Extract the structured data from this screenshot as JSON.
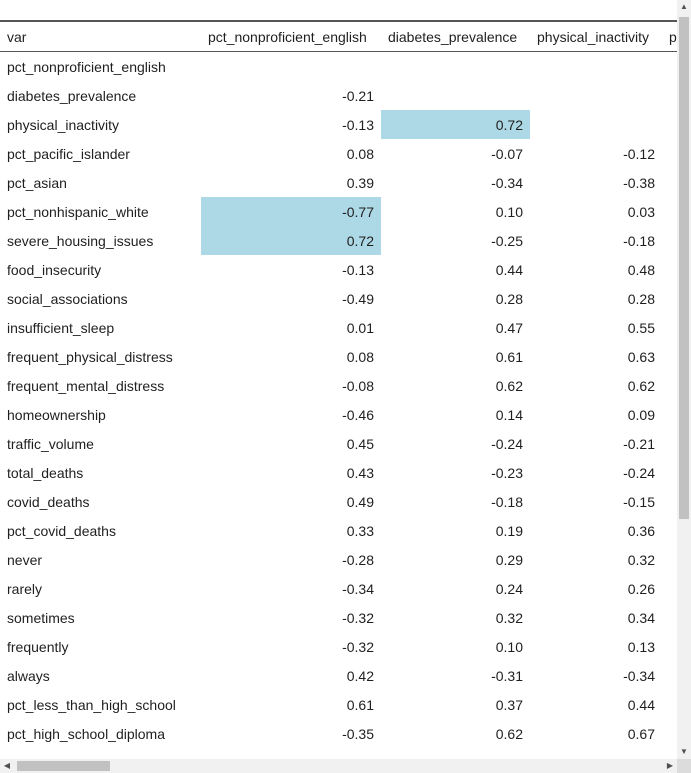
{
  "table": {
    "columns": [
      "var",
      "pct_nonproficient_english",
      "diabetes_prevalence",
      "physical_inactivity",
      "p"
    ],
    "rows": [
      {
        "var": "pct_nonproficient_english",
        "v1": "",
        "v2": "",
        "v3": "",
        "h1": false,
        "h2": false
      },
      {
        "var": "diabetes_prevalence",
        "v1": "-0.21",
        "v2": "",
        "v3": "",
        "h1": false,
        "h2": false
      },
      {
        "var": "physical_inactivity",
        "v1": "-0.13",
        "v2": "0.72",
        "v3": "",
        "h1": false,
        "h2": true
      },
      {
        "var": "pct_pacific_islander",
        "v1": "0.08",
        "v2": "-0.07",
        "v3": "-0.12",
        "h1": false,
        "h2": false
      },
      {
        "var": "pct_asian",
        "v1": "0.39",
        "v2": "-0.34",
        "v3": "-0.38",
        "h1": false,
        "h2": false
      },
      {
        "var": "pct_nonhispanic_white",
        "v1": "-0.77",
        "v2": "0.10",
        "v3": "0.03",
        "h1": true,
        "h2": false
      },
      {
        "var": "severe_housing_issues",
        "v1": "0.72",
        "v2": "-0.25",
        "v3": "-0.18",
        "h1": true,
        "h2": false
      },
      {
        "var": "food_insecurity",
        "v1": "-0.13",
        "v2": "0.44",
        "v3": "0.48",
        "h1": false,
        "h2": false
      },
      {
        "var": "social_associations",
        "v1": "-0.49",
        "v2": "0.28",
        "v3": "0.28",
        "h1": false,
        "h2": false
      },
      {
        "var": "insufficient_sleep",
        "v1": "0.01",
        "v2": "0.47",
        "v3": "0.55",
        "h1": false,
        "h2": false
      },
      {
        "var": "frequent_physical_distress",
        "v1": "0.08",
        "v2": "0.61",
        "v3": "0.63",
        "h1": false,
        "h2": false
      },
      {
        "var": "frequent_mental_distress",
        "v1": "-0.08",
        "v2": "0.62",
        "v3": "0.62",
        "h1": false,
        "h2": false
      },
      {
        "var": "homeownership",
        "v1": "-0.46",
        "v2": "0.14",
        "v3": "0.09",
        "h1": false,
        "h2": false
      },
      {
        "var": "traffic_volume",
        "v1": "0.45",
        "v2": "-0.24",
        "v3": "-0.21",
        "h1": false,
        "h2": false
      },
      {
        "var": "total_deaths",
        "v1": "0.43",
        "v2": "-0.23",
        "v3": "-0.24",
        "h1": false,
        "h2": false
      },
      {
        "var": "covid_deaths",
        "v1": "0.49",
        "v2": "-0.18",
        "v3": "-0.15",
        "h1": false,
        "h2": false
      },
      {
        "var": "pct_covid_deaths",
        "v1": "0.33",
        "v2": "0.19",
        "v3": "0.36",
        "h1": false,
        "h2": false
      },
      {
        "var": "never",
        "v1": "-0.28",
        "v2": "0.29",
        "v3": "0.32",
        "h1": false,
        "h2": false
      },
      {
        "var": "rarely",
        "v1": "-0.34",
        "v2": "0.24",
        "v3": "0.26",
        "h1": false,
        "h2": false
      },
      {
        "var": "sometimes",
        "v1": "-0.32",
        "v2": "0.32",
        "v3": "0.34",
        "h1": false,
        "h2": false
      },
      {
        "var": "frequently",
        "v1": "-0.32",
        "v2": "0.10",
        "v3": "0.13",
        "h1": false,
        "h2": false
      },
      {
        "var": "always",
        "v1": "0.42",
        "v2": "-0.31",
        "v3": "-0.34",
        "h1": false,
        "h2": false
      },
      {
        "var": "pct_less_than_high_school",
        "v1": "0.61",
        "v2": "0.37",
        "v3": "0.44",
        "h1": false,
        "h2": false
      },
      {
        "var": "pct_high_school_diploma",
        "v1": "-0.35",
        "v2": "0.62",
        "v3": "0.67",
        "h1": false,
        "h2": false
      }
    ]
  },
  "highlight_color": "#add8e6",
  "scrollbars": {
    "up_icon": "▲",
    "down_icon": "▼",
    "left_icon": "◀",
    "right_icon": "▶"
  }
}
